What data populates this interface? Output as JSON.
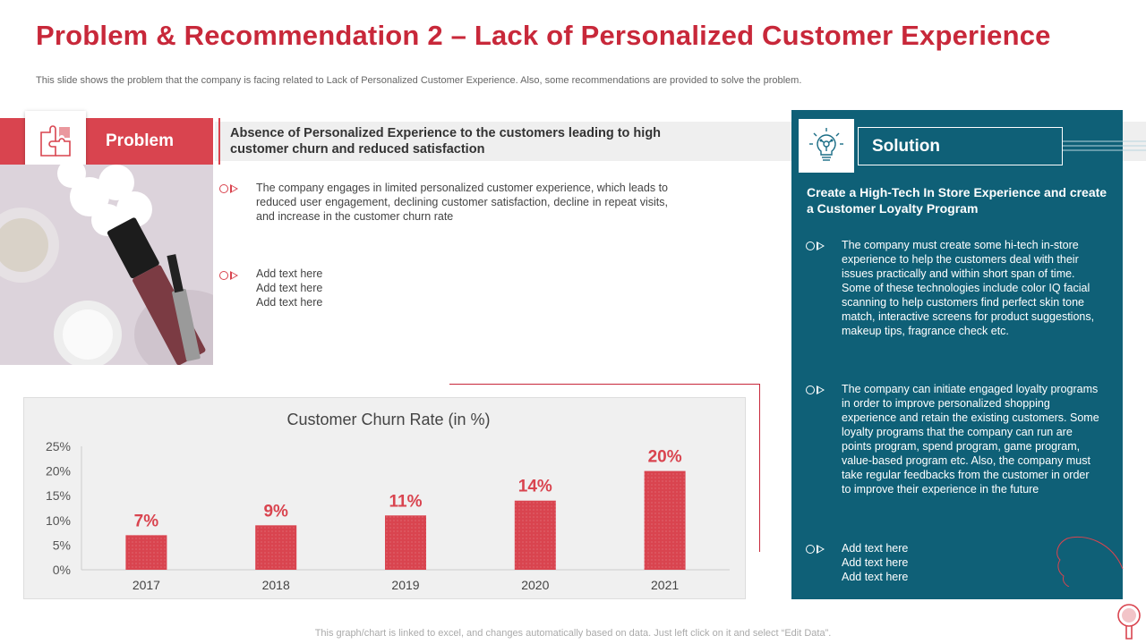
{
  "title": "Problem & Recommendation 2 – Lack of Personalized Customer Experience",
  "subtitle": "This slide shows the problem that the company is facing related to Lack of Personalized Customer Experience. Also, some recommendations are provided to solve the problem.",
  "problem": {
    "label": "Problem",
    "heading": "Absence of Personalized Experience to the customers leading to high customer churn and reduced satisfaction",
    "bullets": [
      "The company engages in limited personalized customer experience, which leads to reduced user engagement, declining customer satisfaction, decline in repeat visits, and increase in the customer churn rate",
      "Add text here\nAdd text here\nAdd text here"
    ]
  },
  "chart_data": {
    "type": "bar",
    "title": "Customer Churn Rate (in %)",
    "categories": [
      "2017",
      "2018",
      "2019",
      "2020",
      "2021"
    ],
    "values": [
      7,
      9,
      11,
      14,
      20
    ],
    "data_labels": [
      "7%",
      "9%",
      "11%",
      "14%",
      "20%"
    ],
    "ylim": [
      0,
      25
    ],
    "yticks": [
      "0%",
      "5%",
      "10%",
      "15%",
      "20%",
      "25%"
    ],
    "bar_color": "#d9444f",
    "grid": false
  },
  "solution": {
    "label": "Solution",
    "heading": "Create a High-Tech In Store Experience and create a Customer Loyalty Program",
    "bullets": [
      "The company must create some hi-tech in-store experience to help the customers deal with their issues practically and within short span of time. Some of these technologies include color IQ facial scanning to help customers find perfect skin tone match, interactive screens for product suggestions, makeup tips, fragrance check etc.",
      "The company can initiate engaged loyalty programs in order to improve personalized shopping experience and retain the existing customers. Some loyalty programs that the company can run are points program, spend program, game program, value-based program etc. Also, the company must take regular feedbacks from the customer in order to improve their experience in the future",
      "Add text here\nAdd text here\nAdd text here"
    ]
  },
  "footer": "This graph/chart is linked to excel,  and changes automatically based on data. Just left click on it and select “Edit Data”.",
  "colors": {
    "accent_red": "#c8283a",
    "problem_red": "#d9444f",
    "solution_teal": "#0f6077"
  },
  "icons": {
    "problem": "puzzle-icon",
    "solution": "lightbulb-icon",
    "bullet": "circle-arrow-bullet-icon",
    "corner": "mirror-icon"
  }
}
